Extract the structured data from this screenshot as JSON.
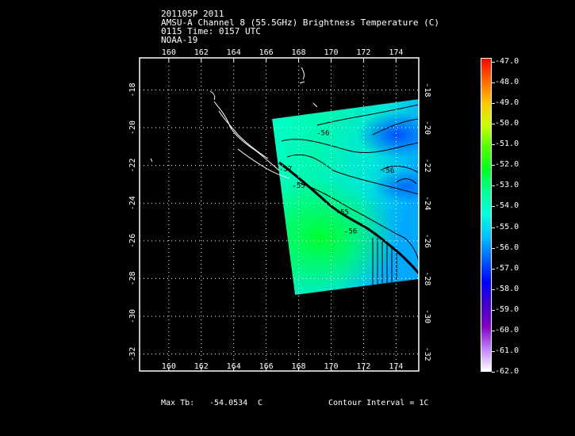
{
  "header": {
    "line1": "201105P 2011",
    "line2": "AMSU-A Channel 8 (55.5GHz) Brightness Temperature (C)",
    "line3": "0115 Time: 0157 UTC",
    "line4": "NOAA-19"
  },
  "map": {
    "lon_ticks": [
      "160",
      "162",
      "164",
      "166",
      "168",
      "170",
      "172",
      "174"
    ],
    "lat_ticks": [
      "-18",
      "-20",
      "-22",
      "-24",
      "-26",
      "-28",
      "-30",
      "-32"
    ],
    "lon_range": [
      158.2,
      175.4
    ],
    "lat_range": [
      -16.3,
      -32.9
    ],
    "contour_labels": [
      {
        "text": "-56",
        "lon": 169.5,
        "lat": -20.4
      },
      {
        "text": "-56",
        "lon": 173.5,
        "lat": -22.4
      },
      {
        "text": "-57",
        "lon": 167.2,
        "lat": -22.3
      },
      {
        "text": "-55",
        "lon": 168.0,
        "lat": -23.2
      },
      {
        "text": "-55",
        "lon": 170.7,
        "lat": -24.6
      },
      {
        "text": "-56",
        "lon": 171.2,
        "lat": -25.6
      }
    ]
  },
  "colorbar": {
    "labels": [
      "-47.0",
      "-48.0",
      "-49.0",
      "-50.0",
      "-51.0",
      "-52.0",
      "-53.0",
      "-54.0",
      "-55.0",
      "-56.0",
      "-57.0",
      "-58.0",
      "-59.0",
      "-60.0",
      "-61.0",
      "-62.0"
    ],
    "colors": [
      "#ff0000",
      "#ff6a00",
      "#ffc800",
      "#c8ff00",
      "#50ff00",
      "#00ff28",
      "#00ff9a",
      "#00ffe0",
      "#00c0ff",
      "#0060ff",
      "#0000ff",
      "#4000cc",
      "#8000c0",
      "#c080ff",
      "#ffffff"
    ]
  },
  "footer": {
    "max_tb_label": "Max Tb:",
    "max_tb_value": "-54.0534",
    "max_tb_unit": "C",
    "contour_interval": "Contour Interval = 1C"
  }
}
